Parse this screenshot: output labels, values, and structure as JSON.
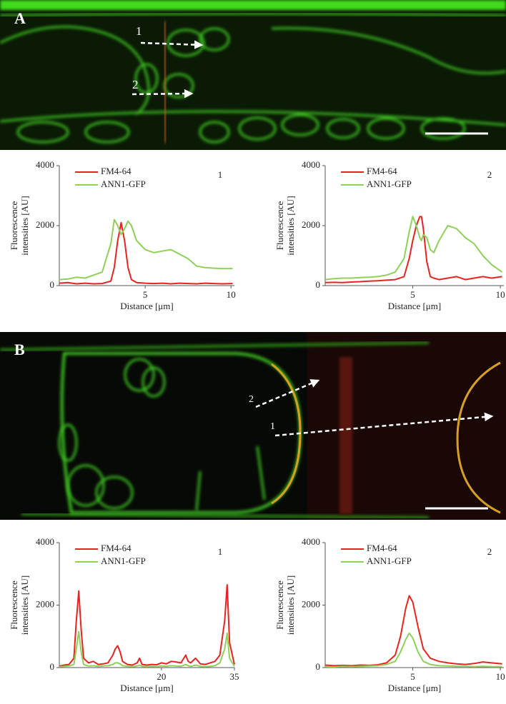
{
  "panels": [
    {
      "label": "A",
      "image_annotations": [
        "1",
        "2"
      ]
    },
    {
      "label": "B",
      "image_annotations": [
        "2",
        "1"
      ]
    }
  ],
  "chart_data": [
    {
      "type": "line",
      "annotation": "1",
      "xlabel": "Distance [μm]",
      "ylabel": [
        "Fluorescence",
        "intensities [AU]"
      ],
      "xlim": [
        0,
        10.2
      ],
      "ylim": [
        0,
        4000
      ],
      "xticks": [
        5,
        10
      ],
      "yticks": [
        0,
        2000,
        4000
      ],
      "x": [
        0,
        0.5,
        1,
        1.5,
        2,
        2.5,
        3,
        3.2,
        3.4,
        3.6,
        3.8,
        4,
        4.2,
        4.5,
        5,
        5.5,
        6,
        6.5,
        7,
        7.5,
        8,
        8.5,
        9,
        9.5,
        10.1
      ],
      "series": [
        {
          "name": "FM4-64",
          "color": "#e8231f",
          "values": [
            80,
            100,
            60,
            80,
            60,
            70,
            150,
            600,
            1500,
            2100,
            1500,
            600,
            200,
            100,
            80,
            70,
            80,
            60,
            80,
            70,
            60,
            80,
            70,
            60,
            70
          ]
        },
        {
          "name": "ANN1-GFP",
          "color": "#8fcf5a",
          "values": [
            200,
            220,
            280,
            250,
            350,
            450,
            1400,
            2200,
            2000,
            1700,
            1900,
            2150,
            2000,
            1500,
            1200,
            1100,
            1150,
            1200,
            1050,
            900,
            650,
            600,
            580,
            570,
            570
          ]
        }
      ]
    },
    {
      "type": "line",
      "annotation": "2",
      "xlabel": "Distance [μm]",
      "ylabel": [
        "Fluorescence",
        "intensities [AU]"
      ],
      "xlim": [
        0,
        10.2
      ],
      "ylim": [
        0,
        4000
      ],
      "xticks": [
        5,
        10
      ],
      "yticks": [
        0,
        2000,
        4000
      ],
      "x": [
        0,
        0.5,
        1,
        1.5,
        2,
        2.5,
        3,
        3.5,
        4,
        4.5,
        4.8,
        5,
        5.2,
        5.4,
        5.5,
        5.6,
        5.8,
        6,
        6.2,
        6.5,
        7,
        7.5,
        8,
        8.5,
        9,
        9.5,
        10.1
      ],
      "series": [
        {
          "name": "FM4-64",
          "color": "#e8231f",
          "values": [
            100,
            110,
            100,
            120,
            130,
            150,
            160,
            180,
            200,
            300,
            900,
            1500,
            2000,
            2300,
            2300,
            1900,
            800,
            300,
            250,
            200,
            250,
            300,
            200,
            250,
            300,
            250,
            300
          ]
        },
        {
          "name": "ANN1-GFP",
          "color": "#8fcf5a",
          "values": [
            200,
            230,
            250,
            250,
            270,
            280,
            300,
            350,
            450,
            900,
            1800,
            2300,
            2000,
            1600,
            1500,
            1700,
            1600,
            1200,
            1100,
            1500,
            2000,
            1900,
            1600,
            1400,
            1000,
            700,
            450
          ]
        }
      ]
    },
    {
      "type": "line",
      "annotation": "1",
      "xlabel": "Distance [μm]",
      "ylabel": [
        "Fluorescence",
        "intensities [AU]"
      ],
      "xlim": [
        -1,
        35
      ],
      "ylim": [
        0,
        4000
      ],
      "xticks": [
        20,
        35
      ],
      "yticks": [
        0,
        2000,
        4000
      ],
      "x": [
        -1,
        0,
        1,
        2,
        2.5,
        3,
        3.5,
        4,
        5,
        6,
        7,
        8,
        9,
        10,
        10.5,
        11,
        11.5,
        12,
        13,
        14,
        15,
        15.5,
        16,
        17,
        18,
        19,
        20,
        21,
        22,
        23,
        24,
        25,
        25.5,
        26,
        27,
        28,
        29,
        30,
        31,
        32,
        33,
        33.5,
        34,
        35
      ],
      "series": [
        {
          "name": "FM4-64",
          "color": "#e8231f",
          "values": [
            50,
            80,
            100,
            300,
            1500,
            2450,
            1200,
            300,
            150,
            200,
            100,
            120,
            150,
            400,
            600,
            700,
            500,
            200,
            100,
            80,
            150,
            300,
            100,
            80,
            100,
            90,
            150,
            120,
            200,
            180,
            150,
            400,
            200,
            150,
            300,
            120,
            100,
            150,
            200,
            400,
            1500,
            2650,
            800,
            100
          ]
        },
        {
          "name": "ANN1-GFP",
          "color": "#8fcf5a",
          "values": [
            30,
            40,
            50,
            100,
            600,
            1150,
            500,
            100,
            50,
            60,
            40,
            50,
            60,
            100,
            150,
            150,
            120,
            60,
            40,
            30,
            50,
            80,
            40,
            30,
            40,
            30,
            50,
            40,
            60,
            50,
            40,
            100,
            60,
            40,
            80,
            40,
            30,
            40,
            60,
            150,
            600,
            1100,
            300,
            40
          ]
        }
      ]
    },
    {
      "type": "line",
      "annotation": "2",
      "xlabel": "Distance [μm]",
      "ylabel": [
        "Fluorescence",
        "intensities [AU]"
      ],
      "xlim": [
        0,
        10.2
      ],
      "ylim": [
        0,
        4000
      ],
      "xticks": [
        5,
        10
      ],
      "yticks": [
        0,
        2000,
        4000
      ],
      "x": [
        0,
        0.5,
        1,
        1.5,
        2,
        2.5,
        3,
        3.5,
        4,
        4.3,
        4.6,
        4.8,
        5,
        5.3,
        5.6,
        6,
        6.5,
        7,
        7.5,
        8,
        8.5,
        9,
        9.5,
        10.1
      ],
      "series": [
        {
          "name": "FM4-64",
          "color": "#e8231f",
          "values": [
            80,
            60,
            70,
            60,
            80,
            70,
            90,
            150,
            400,
            1000,
            1900,
            2300,
            2100,
            1300,
            600,
            300,
            200,
            150,
            120,
            100,
            130,
            180,
            150,
            120
          ]
        },
        {
          "name": "ANN1-GFP",
          "color": "#8fcf5a",
          "values": [
            30,
            20,
            40,
            30,
            40,
            50,
            60,
            100,
            200,
            500,
            900,
            1100,
            950,
            500,
            200,
            100,
            60,
            50,
            40,
            40,
            30,
            40,
            30,
            30
          ]
        }
      ]
    }
  ]
}
